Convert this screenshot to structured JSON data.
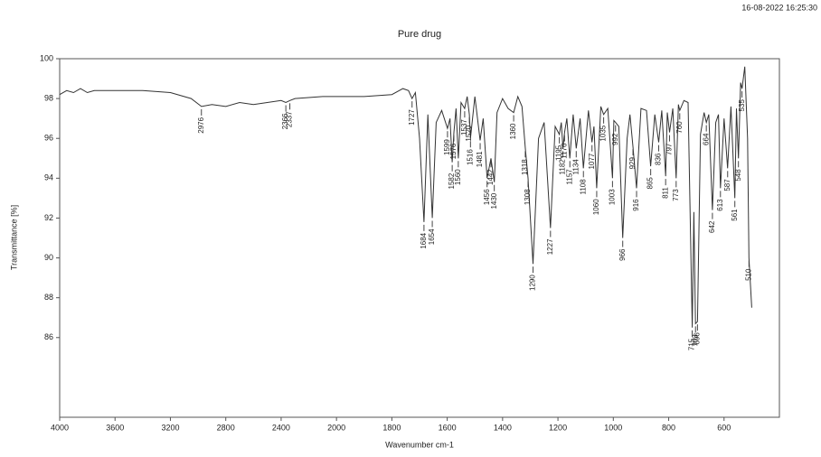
{
  "chart_data": {
    "type": "line",
    "title": "Pure drug",
    "timestamp": "16-08-2022  16:25:30",
    "x_label": "Wavenumber cm-1",
    "y_label": "Transmittance [%]",
    "xlim": [
      4000,
      400
    ],
    "xticks": [
      4000,
      3600,
      3200,
      2800,
      2400,
      2000,
      1800,
      1600,
      1400,
      1200,
      1000,
      800,
      600
    ],
    "ylim": [
      82,
      100
    ],
    "yticks": [
      86,
      88,
      90,
      92,
      94,
      96,
      98,
      100
    ],
    "series": [
      {
        "name": "Pure drug",
        "color": "#333333",
        "x": [
          4000,
          3950,
          3900,
          3850,
          3800,
          3750,
          3700,
          3600,
          3400,
          3200,
          3050,
          2976,
          2900,
          2800,
          2700,
          2600,
          2500,
          2400,
          2366,
          2337,
          2300,
          2100,
          1900,
          1800,
          1760,
          1740,
          1727,
          1715,
          1700,
          1684,
          1670,
          1654,
          1640,
          1620,
          1599,
          1590,
          1582,
          1576,
          1568,
          1560,
          1550,
          1537,
          1528,
          1520,
          1516,
          1500,
          1481,
          1470,
          1456,
          1442,
          1430,
          1420,
          1400,
          1380,
          1360,
          1345,
          1330,
          1318,
          1308,
          1290,
          1270,
          1250,
          1227,
          1210,
          1195,
          1188,
          1182,
          1176,
          1168,
          1157,
          1145,
          1134,
          1120,
          1108,
          1090,
          1077,
          1070,
          1060,
          1045,
          1035,
          1020,
          1003,
          998,
          992,
          980,
          966,
          950,
          940,
          929,
          916,
          900,
          880,
          865,
          850,
          836,
          825,
          811,
          805,
          797,
          785,
          773,
          765,
          760,
          745,
          730,
          715,
          709,
          703,
          696,
          685,
          672,
          664,
          655,
          642,
          630,
          620,
          613,
          600,
          587,
          575,
          561,
          555,
          548,
          540,
          535,
          525,
          515,
          510,
          500
        ],
        "values": [
          98.2,
          98.4,
          98.3,
          98.5,
          98.3,
          98.4,
          98.4,
          98.4,
          98.4,
          98.3,
          98.0,
          97.6,
          97.7,
          97.6,
          97.8,
          97.7,
          97.8,
          97.9,
          97.8,
          97.9,
          98.0,
          98.1,
          98.1,
          98.2,
          98.5,
          98.4,
          98.0,
          98.3,
          96,
          91.8,
          97.2,
          92.0,
          96.8,
          97.4,
          96.5,
          97.0,
          94.8,
          96.3,
          97.5,
          95.0,
          97.8,
          97.5,
          98.1,
          97.2,
          96.0,
          98.1,
          95.9,
          97.0,
          94.0,
          95.0,
          93.8,
          97.3,
          98.0,
          97.5,
          97.3,
          98.1,
          97.6,
          95.5,
          94.0,
          89.7,
          96.0,
          96.8,
          91.5,
          96.6,
          96.2,
          96.8,
          95.5,
          96.3,
          97.0,
          95.0,
          97.2,
          95.5,
          97.0,
          94.5,
          97.4,
          95.8,
          96.6,
          93.5,
          97.6,
          97.2,
          97.5,
          94.0,
          96.9,
          96.8,
          96.6,
          91.0,
          96.0,
          97.2,
          95.6,
          93.5,
          97.5,
          97.4,
          94.6,
          97.2,
          95.8,
          97.4,
          94.1,
          97.3,
          96.3,
          97.5,
          94.0,
          97.7,
          97.4,
          97.9,
          97.8,
          86.5,
          92.3,
          86.7,
          86.8,
          96.2,
          97.3,
          96.8,
          97.2,
          92.4,
          96.8,
          97.2,
          93.5,
          97.0,
          94.5,
          97.6,
          93.0,
          97.5,
          95.0,
          98.8,
          98.5,
          99.6,
          96,
          90.0,
          87.5
        ]
      }
    ],
    "peak_labels": [
      2976,
      2366,
      2337,
      1727,
      1684,
      1654,
      1599,
      1582,
      1576,
      1560,
      1537,
      1520,
      1516,
      1481,
      1456,
      1442,
      1430,
      1360,
      1318,
      1308,
      1290,
      1227,
      1195,
      1182,
      1176,
      1157,
      1134,
      1108,
      1077,
      1060,
      1035,
      1003,
      992,
      966,
      929,
      916,
      865,
      836,
      811,
      797,
      773,
      760,
      715,
      703,
      696,
      664,
      642,
      613,
      587,
      561,
      548,
      535,
      510
    ]
  }
}
